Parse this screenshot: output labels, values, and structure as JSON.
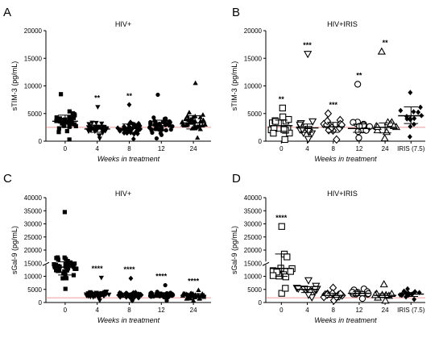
{
  "chart_data": [
    {
      "panel": "A",
      "title": "HIV+",
      "type": "scatter",
      "xlabel": "Weeks in treatment",
      "ylabel": "sTIM-3 (pg/mL)",
      "ylim": [
        0,
        20000
      ],
      "yticks": [
        "0",
        "5000",
        "10000",
        "15000",
        "20000"
      ],
      "categories": [
        "0",
        "4",
        "8",
        "12",
        "24"
      ],
      "markers": [
        "square",
        "triangle-down",
        "diamond",
        "circle",
        "triangle-up"
      ],
      "filled": true,
      "reference_line": 2500,
      "annotations": [
        "",
        "**",
        "**",
        "",
        ""
      ],
      "groups": [
        {
          "median": 3600,
          "q1": 2500,
          "q3": 4700,
          "n": 40,
          "min": 300,
          "max": 8500
        },
        {
          "median": 2200,
          "q1": 1600,
          "q3": 2900,
          "n": 40,
          "min": 500,
          "max": 6200
        },
        {
          "median": 2300,
          "q1": 1600,
          "q3": 3100,
          "n": 40,
          "min": 400,
          "max": 6600
        },
        {
          "median": 2800,
          "q1": 1900,
          "q3": 3800,
          "n": 40,
          "min": 500,
          "max": 8400
        },
        {
          "median": 3300,
          "q1": 2200,
          "q3": 4600,
          "n": 40,
          "min": 600,
          "max": 10500
        }
      ]
    },
    {
      "panel": "B",
      "title": "HIV+IRIS",
      "type": "scatter",
      "xlabel": "Weeks in treatment",
      "ylabel": "sTIM-3 (pg/mL)",
      "ylim": [
        0,
        20000
      ],
      "yticks": [
        "0",
        "5000",
        "10000",
        "15000",
        "20000"
      ],
      "categories": [
        "0",
        "4",
        "8",
        "12",
        "24",
        "IRIS (7.5)"
      ],
      "markers": [
        "square",
        "triangle-down",
        "diamond",
        "circle",
        "triangle-up",
        "diamond"
      ],
      "filled": false,
      "filled_last": true,
      "reference_line": 2500,
      "annotations": [
        "**",
        "***",
        "***",
        "**",
        "**",
        ""
      ],
      "groups": [
        {
          "median": 2800,
          "q1": 1800,
          "q3": 3800,
          "n": 15,
          "min": 300,
          "max": 6000
        },
        {
          "median": 2400,
          "q1": 1600,
          "q3": 3100,
          "n": 14,
          "min": 400,
          "max": 15800
        },
        {
          "median": 2600,
          "q1": 1600,
          "q3": 3400,
          "n": 14,
          "min": 300,
          "max": 5000
        },
        {
          "median": 2300,
          "q1": 1600,
          "q3": 3100,
          "n": 13,
          "min": 600,
          "max": 10300
        },
        {
          "median": 2500,
          "q1": 1500,
          "q3": 3300,
          "n": 11,
          "min": 500,
          "max": 16200
        },
        {
          "median": 4600,
          "q1": 3200,
          "q3": 6200,
          "n": 14,
          "min": 800,
          "max": 8800
        }
      ]
    },
    {
      "panel": "C",
      "title": "HIV+",
      "type": "scatter",
      "xlabel": "Weeks in treatment",
      "ylabel": "sGal-9 (pg/mL)",
      "ylim": [
        0,
        40000
      ],
      "yticks": [
        "0",
        "5000",
        "10000",
        "15000",
        "20000",
        "25000",
        "30000",
        "35000",
        "40000"
      ],
      "categories": [
        "0",
        "4",
        "8",
        "12",
        "24"
      ],
      "markers": [
        "square",
        "triangle-down",
        "diamond",
        "circle",
        "triangle-up"
      ],
      "filled": true,
      "reference_line": 1800,
      "axis_break": true,
      "annotations": [
        "",
        "****",
        "****",
        "****",
        "****"
      ],
      "groups": [
        {
          "median": 13500,
          "q1": 10500,
          "q3": 15500,
          "n": 42,
          "min": 5200,
          "max": 34500
        },
        {
          "median": 3100,
          "q1": 2300,
          "q3": 3900,
          "n": 40,
          "min": 800,
          "max": 9500
        },
        {
          "median": 2800,
          "q1": 2000,
          "q3": 3600,
          "n": 40,
          "min": 700,
          "max": 9200
        },
        {
          "median": 2900,
          "q1": 2000,
          "q3": 3700,
          "n": 40,
          "min": 700,
          "max": 6600
        },
        {
          "median": 2700,
          "q1": 1900,
          "q3": 3400,
          "n": 40,
          "min": 700,
          "max": 4700
        }
      ]
    },
    {
      "panel": "D",
      "title": "HIV+IRIS",
      "type": "scatter",
      "xlabel": "Weeks in treatment",
      "ylabel": "sGal-9 (pg/mL)",
      "ylim": [
        0,
        40000
      ],
      "yticks": [
        "0",
        "5000",
        "10000",
        "15000",
        "20000",
        "25000",
        "30000",
        "35000",
        "40000"
      ],
      "categories": [
        "0",
        "4",
        "8",
        "12",
        "24",
        "IRIS (7.5)"
      ],
      "markers": [
        "square",
        "triangle-down",
        "diamond",
        "circle",
        "triangle-up",
        "diamond"
      ],
      "filled": false,
      "filled_last": true,
      "reference_line": 1800,
      "axis_break": true,
      "annotations": [
        "****",
        "",
        "",
        "",
        "",
        ""
      ],
      "groups": [
        {
          "median": 13000,
          "q1": 10000,
          "q3": 18500,
          "n": 14,
          "min": 3500,
          "max": 29000
        },
        {
          "median": 5000,
          "q1": 3800,
          "q3": 6000,
          "n": 14,
          "min": 2000,
          "max": 8500
        },
        {
          "median": 2700,
          "q1": 2000,
          "q3": 3500,
          "n": 14,
          "min": 800,
          "max": 5600
        },
        {
          "median": 3500,
          "q1": 2600,
          "q3": 4200,
          "n": 13,
          "min": 1500,
          "max": 5200
        },
        {
          "median": 2700,
          "q1": 2000,
          "q3": 3400,
          "n": 11,
          "min": 700,
          "max": 6900
        },
        {
          "median": 3200,
          "q1": 2300,
          "q3": 3800,
          "n": 14,
          "min": 1200,
          "max": 5200
        }
      ]
    }
  ]
}
